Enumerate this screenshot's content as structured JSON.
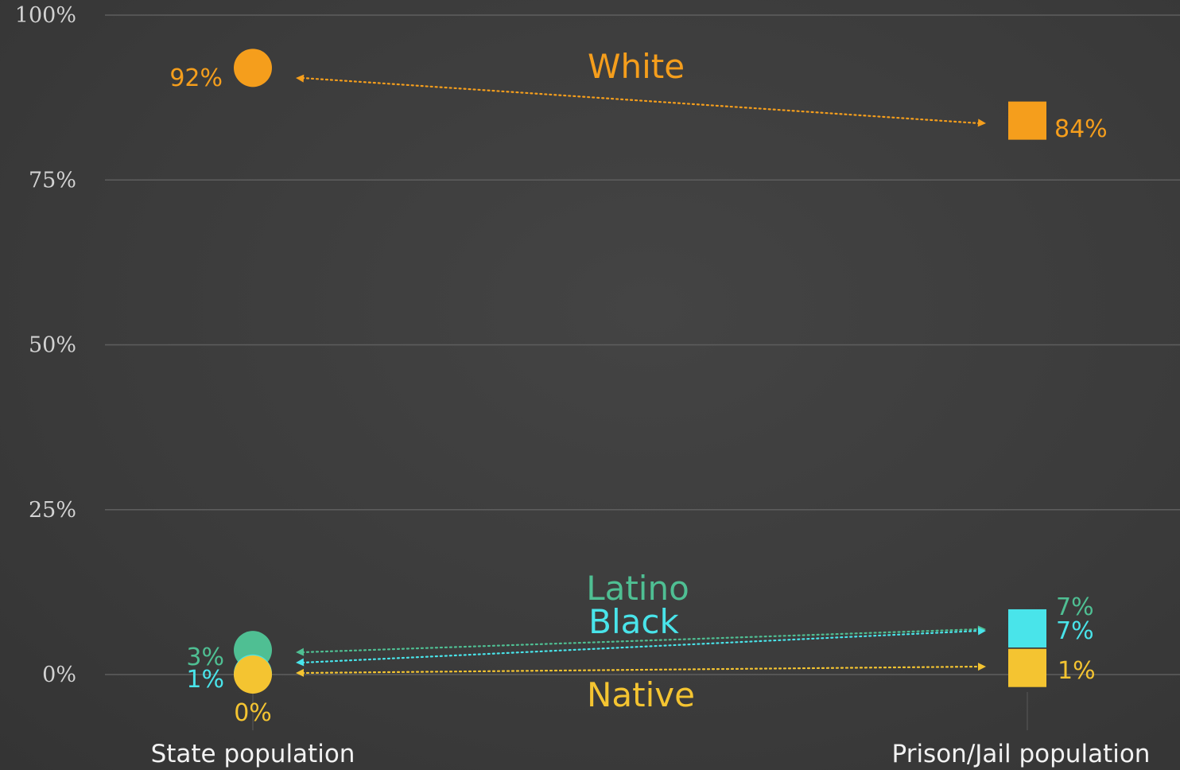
{
  "chart_data": {
    "type": "scatter",
    "title": "",
    "xlabel": "",
    "ylabel": "",
    "ylim": [
      0,
      100
    ],
    "yticks": [
      {
        "value": 0,
        "label": "0%"
      },
      {
        "value": 25,
        "label": "25%"
      },
      {
        "value": 50,
        "label": "50%"
      },
      {
        "value": 75,
        "label": "75%"
      },
      {
        "value": 100,
        "label": "100%"
      }
    ],
    "categories": [
      "State population",
      "Prison/Jail population"
    ],
    "grid": true,
    "legend": "none",
    "series": [
      {
        "name": "White",
        "color": "#f59e1c",
        "values": [
          92,
          84
        ],
        "labels": [
          "92%",
          "84%"
        ]
      },
      {
        "name": "Latino",
        "color": "#4fbf93",
        "values": [
          3,
          7
        ],
        "labels": [
          "3%",
          "7%"
        ]
      },
      {
        "name": "Black",
        "color": "#49e4ea",
        "values": [
          1,
          7
        ],
        "labels": [
          "1%",
          "7%"
        ]
      },
      {
        "name": "Native",
        "color": "#f4c431",
        "values": [
          0,
          1
        ],
        "labels": [
          "0%",
          "1%"
        ]
      }
    ]
  }
}
